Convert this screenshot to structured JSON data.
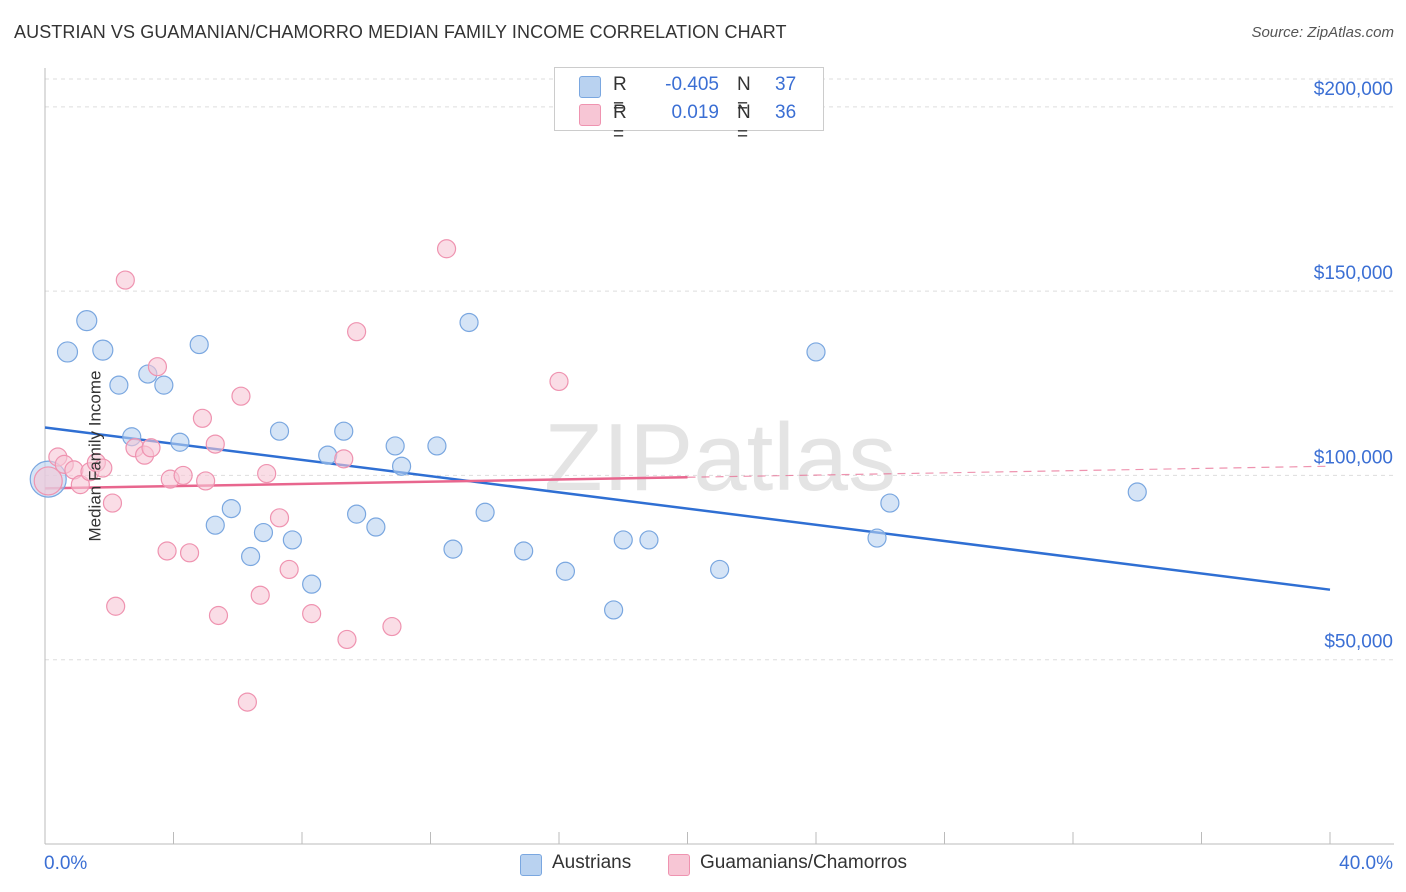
{
  "header": {
    "title": "AUSTRIAN VS GUAMANIAN/CHAMORRO MEDIAN FAMILY INCOME CORRELATION CHART",
    "source": "Source: ZipAtlas.com"
  },
  "watermark": "ZIPatlas",
  "legend": {
    "austrians": {
      "r_label": "R =",
      "r_value": "-0.405",
      "n_label": "N =",
      "n_value": "37"
    },
    "guamanians": {
      "r_label": "R =",
      "r_value": "0.019",
      "n_label": "N =",
      "n_value": "36"
    }
  },
  "bottom_legend": {
    "austrians": "Austrians",
    "guamanians": "Guamanians/Chamorros"
  },
  "colors": {
    "blue_fill": "#b9d2f0",
    "blue_stroke": "#7aa7e0",
    "blue_line": "#2f6fd3",
    "pink_fill": "#f7c6d5",
    "pink_stroke": "#ef93b0",
    "pink_line": "#e8668e",
    "tick_text": "#3b6fd4",
    "grid": "#dddddd"
  },
  "chart_data": {
    "type": "scatter",
    "title": "AUSTRIAN VS GUAMANIAN/CHAMORRO MEDIAN FAMILY INCOME CORRELATION CHART",
    "xlabel": "",
    "ylabel": "Median Family Income",
    "xlim": [
      0,
      40
    ],
    "ylim": [
      0,
      210000
    ],
    "x_tick_labels": {
      "min": "0.0%",
      "max": "40.0%"
    },
    "y_ticks": [
      {
        "value": 50000,
        "label": "$50,000"
      },
      {
        "value": 100000,
        "label": "$100,000"
      },
      {
        "value": 150000,
        "label": "$150,000"
      },
      {
        "value": 200000,
        "label": "$200,000"
      }
    ],
    "series": [
      {
        "name": "Austrians",
        "color": "blue",
        "trend": {
          "x0": 0.0,
          "y0": 113000,
          "x1": 40.0,
          "y1": 69000,
          "solid_to": 40.0
        },
        "points": [
          [
            0.1,
            99000,
            18
          ],
          [
            0.7,
            133500,
            10
          ],
          [
            1.3,
            142000,
            10
          ],
          [
            1.8,
            134000,
            10
          ],
          [
            2.3,
            124500,
            9
          ],
          [
            2.7,
            110500,
            9
          ],
          [
            3.2,
            127500,
            9
          ],
          [
            3.7,
            124500,
            9
          ],
          [
            4.2,
            109000,
            9
          ],
          [
            4.8,
            135500,
            9
          ],
          [
            5.3,
            86500,
            9
          ],
          [
            5.8,
            91000,
            9
          ],
          [
            6.4,
            78000,
            9
          ],
          [
            6.8,
            84500,
            9
          ],
          [
            7.3,
            112000,
            9
          ],
          [
            7.7,
            82500,
            9
          ],
          [
            8.3,
            70500,
            9
          ],
          [
            8.8,
            105500,
            9
          ],
          [
            9.3,
            112000,
            9
          ],
          [
            9.7,
            89500,
            9
          ],
          [
            10.3,
            86000,
            9
          ],
          [
            10.9,
            108000,
            9
          ],
          [
            11.1,
            102500,
            9
          ],
          [
            12.2,
            108000,
            9
          ],
          [
            12.7,
            80000,
            9
          ],
          [
            13.2,
            141500,
            9
          ],
          [
            13.7,
            90000,
            9
          ],
          [
            14.9,
            79500,
            9
          ],
          [
            16.2,
            74000,
            9
          ],
          [
            17.7,
            63500,
            9
          ],
          [
            18.0,
            82500,
            9
          ],
          [
            18.8,
            82500,
            9
          ],
          [
            21.0,
            74500,
            9
          ],
          [
            24.0,
            133500,
            9
          ],
          [
            25.9,
            83000,
            9
          ],
          [
            26.3,
            92500,
            9
          ],
          [
            34.0,
            95500,
            9
          ]
        ]
      },
      {
        "name": "Guamanians/Chamorros",
        "color": "pink",
        "trend": {
          "x0": 0.0,
          "y0": 96500,
          "x1": 40.0,
          "y1": 102500,
          "solid_to": 20.0
        },
        "points": [
          [
            0.1,
            98500,
            14
          ],
          [
            0.4,
            105000,
            9
          ],
          [
            0.6,
            103000,
            9
          ],
          [
            0.9,
            101500,
            9
          ],
          [
            1.1,
            97500,
            9
          ],
          [
            1.4,
            101000,
            9
          ],
          [
            1.6,
            103500,
            9
          ],
          [
            1.8,
            102000,
            9
          ],
          [
            2.1,
            92500,
            9
          ],
          [
            2.2,
            64500,
            9
          ],
          [
            2.5,
            153000,
            9
          ],
          [
            2.8,
            107500,
            9
          ],
          [
            3.1,
            105500,
            9
          ],
          [
            3.3,
            107500,
            9
          ],
          [
            3.5,
            129500,
            9
          ],
          [
            3.8,
            79500,
            9
          ],
          [
            3.9,
            99000,
            9
          ],
          [
            4.3,
            100000,
            9
          ],
          [
            4.5,
            79000,
            9
          ],
          [
            4.9,
            115500,
            9
          ],
          [
            5.0,
            98500,
            9
          ],
          [
            5.3,
            108500,
            9
          ],
          [
            5.4,
            62000,
            9
          ],
          [
            6.1,
            121500,
            9
          ],
          [
            6.3,
            38500,
            9
          ],
          [
            6.7,
            67500,
            9
          ],
          [
            6.9,
            100500,
            9
          ],
          [
            7.3,
            88500,
            9
          ],
          [
            7.6,
            74500,
            9
          ],
          [
            8.3,
            62500,
            9
          ],
          [
            9.3,
            104500,
            9
          ],
          [
            9.4,
            55500,
            9
          ],
          [
            9.7,
            139000,
            9
          ],
          [
            10.8,
            59000,
            9
          ],
          [
            12.5,
            161500,
            9
          ],
          [
            16.0,
            125500,
            9
          ]
        ]
      }
    ]
  }
}
